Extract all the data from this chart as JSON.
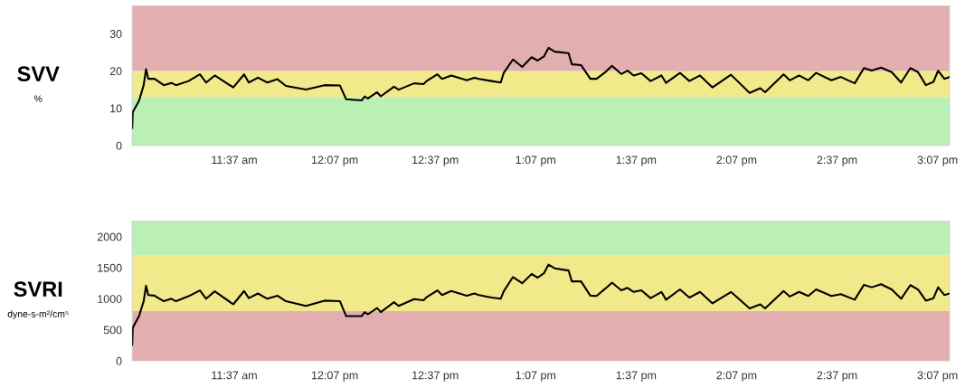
{
  "chart_data": [
    {
      "type": "line",
      "ylabel": "SVV",
      "annotations": [
        "%"
      ],
      "x": [
        11.109,
        11.112,
        11.143,
        11.166,
        11.178,
        11.189,
        11.22,
        11.266,
        11.304,
        11.327,
        11.389,
        11.446,
        11.477,
        11.52,
        11.612,
        11.666,
        11.689,
        11.735,
        11.781,
        11.832,
        11.874,
        11.974,
        12.066,
        12.143,
        12.174,
        12.251,
        12.266,
        12.282,
        12.328,
        12.346,
        12.412,
        12.435,
        12.512,
        12.559,
        12.574,
        12.628,
        12.651,
        12.697,
        12.774,
        12.812,
        12.835,
        12.897,
        12.943,
        12.958,
        13.004,
        13.05,
        13.097,
        13.127,
        13.158,
        13.181,
        13.212,
        13.281,
        13.297,
        13.343,
        13.389,
        13.42,
        13.466,
        13.497,
        13.543,
        13.574,
        13.605,
        13.643,
        13.689,
        13.743,
        13.766,
        13.835,
        13.882,
        13.935,
        13.997,
        14.089,
        14.182,
        14.235,
        14.259,
        14.351,
        14.382,
        14.428,
        14.474,
        14.513,
        14.589,
        14.636,
        14.705,
        14.751,
        14.79,
        14.836,
        14.889,
        14.936,
        14.982,
        15.02,
        15.059,
        15.097,
        15.12,
        15.151,
        15.177
      ],
      "series": [
        {
          "color": "#000000",
          "values": [
            4.7,
            9.0,
            12.0,
            16.2,
            20.5,
            17.9,
            17.9,
            16.2,
            16.8,
            16.2,
            17.3,
            19.1,
            16.9,
            18.8,
            15.6,
            19.1,
            16.9,
            18.2,
            16.9,
            17.8,
            16.0,
            15.0,
            16.2,
            16.1,
            12.4,
            12.1,
            13.2,
            12.6,
            14.3,
            13.2,
            15.8,
            15.0,
            16.7,
            16.5,
            17.3,
            19.1,
            17.9,
            18.8,
            17.5,
            18.2,
            17.9,
            17.3,
            16.9,
            19.5,
            23.1,
            21.1,
            23.7,
            22.8,
            23.9,
            26.2,
            25.2,
            24.8,
            21.8,
            21.6,
            17.9,
            17.9,
            19.8,
            21.4,
            19.2,
            20.1,
            18.8,
            19.4,
            17.3,
            18.8,
            16.8,
            19.5,
            17.3,
            18.8,
            15.6,
            19.0,
            14.1,
            15.4,
            14.3,
            19.1,
            17.5,
            18.8,
            17.5,
            19.5,
            17.5,
            18.4,
            16.7,
            20.8,
            20.1,
            20.9,
            19.7,
            16.9,
            20.8,
            19.7,
            16.2,
            17.1,
            20.1,
            17.9,
            18.4
          ]
        }
      ],
      "xlim": [
        11.109,
        15.177
      ],
      "ylim": [
        0,
        37.5
      ],
      "yticks": [
        0,
        10,
        20,
        30
      ],
      "xticks": [
        {
          "value": 11.617,
          "label": "11:37 am"
        },
        {
          "value": 12.117,
          "label": "12:07 pm"
        },
        {
          "value": 12.617,
          "label": "12:37 pm"
        },
        {
          "value": 13.117,
          "label": "1:07 pm"
        },
        {
          "value": 13.617,
          "label": "1:37 pm"
        },
        {
          "value": 14.117,
          "label": "2:07 pm"
        },
        {
          "value": 14.617,
          "label": "2:37 pm"
        },
        {
          "value": 15.117,
          "label": "3:07 pm"
        }
      ],
      "bands": [
        {
          "axis": "y",
          "from": 0,
          "to": 13,
          "color": "#bbf0b4"
        },
        {
          "axis": "y",
          "from": 13,
          "to": 20,
          "color": "#f1ea8a"
        },
        {
          "axis": "y",
          "from": 20,
          "to": 37.5,
          "color": "#e2aeb0"
        }
      ],
      "grid": false,
      "legend": false
    },
    {
      "type": "line",
      "ylabel": "SVRI",
      "annotations": [
        "dyne-s-m²/cm⁵"
      ],
      "x": [
        11.109,
        11.112,
        11.143,
        11.166,
        11.178,
        11.189,
        11.22,
        11.266,
        11.304,
        11.327,
        11.389,
        11.446,
        11.477,
        11.52,
        11.612,
        11.666,
        11.689,
        11.735,
        11.781,
        11.832,
        11.874,
        11.974,
        12.066,
        12.143,
        12.174,
        12.251,
        12.266,
        12.282,
        12.328,
        12.346,
        12.412,
        12.435,
        12.512,
        12.559,
        12.574,
        12.628,
        12.651,
        12.697,
        12.774,
        12.812,
        12.835,
        12.897,
        12.943,
        12.958,
        13.004,
        13.05,
        13.097,
        13.127,
        13.158,
        13.181,
        13.212,
        13.281,
        13.297,
        13.343,
        13.389,
        13.42,
        13.466,
        13.497,
        13.543,
        13.574,
        13.605,
        13.643,
        13.689,
        13.743,
        13.766,
        13.835,
        13.882,
        13.935,
        13.997,
        14.089,
        14.182,
        14.235,
        14.259,
        14.351,
        14.382,
        14.428,
        14.474,
        14.513,
        14.589,
        14.636,
        14.705,
        14.751,
        14.79,
        14.836,
        14.889,
        14.936,
        14.982,
        15.02,
        15.059,
        15.097,
        15.12,
        15.151,
        15.177
      ],
      "series": [
        {
          "color": "#000000",
          "values": [
            260,
            535,
            720,
            960,
            1210,
            1060,
            1050,
            960,
            1000,
            960,
            1040,
            1135,
            1000,
            1120,
            910,
            1125,
            1010,
            1085,
            1000,
            1050,
            960,
            885,
            970,
            960,
            720,
            720,
            785,
            750,
            850,
            785,
            945,
            885,
            995,
            975,
            1025,
            1135,
            1060,
            1125,
            1050,
            1085,
            1060,
            1020,
            1000,
            1120,
            1350,
            1250,
            1400,
            1340,
            1410,
            1550,
            1490,
            1455,
            1280,
            1280,
            1050,
            1045,
            1170,
            1260,
            1135,
            1175,
            1110,
            1135,
            1010,
            1110,
            985,
            1150,
            1020,
            1110,
            925,
            1110,
            845,
            910,
            845,
            1125,
            1035,
            1110,
            1045,
            1150,
            1045,
            1075,
            985,
            1225,
            1185,
            1235,
            1150,
            1000,
            1220,
            1150,
            970,
            1010,
            1185,
            1060,
            1085
          ]
        }
      ],
      "xlim": [
        11.109,
        15.177
      ],
      "ylim": [
        0,
        2250
      ],
      "yticks": [
        0,
        500,
        1000,
        1500,
        2000
      ],
      "xticks": [
        {
          "value": 11.617,
          "label": "11:37 am"
        },
        {
          "value": 12.117,
          "label": "12:07 pm"
        },
        {
          "value": 12.617,
          "label": "12:37 pm"
        },
        {
          "value": 13.117,
          "label": "1:07 pm"
        },
        {
          "value": 13.617,
          "label": "1:37 pm"
        },
        {
          "value": 14.117,
          "label": "2:07 pm"
        },
        {
          "value": 14.617,
          "label": "2:37 pm"
        },
        {
          "value": 15.117,
          "label": "3:07 pm"
        }
      ],
      "bands": [
        {
          "axis": "y",
          "from": 0,
          "to": 800,
          "color": "#e2aeb0"
        },
        {
          "axis": "y",
          "from": 800,
          "to": 1700,
          "color": "#f1ea8a"
        },
        {
          "axis": "y",
          "from": 1700,
          "to": 2250,
          "color": "#bbf0b4"
        }
      ],
      "grid": false,
      "legend": false
    }
  ]
}
